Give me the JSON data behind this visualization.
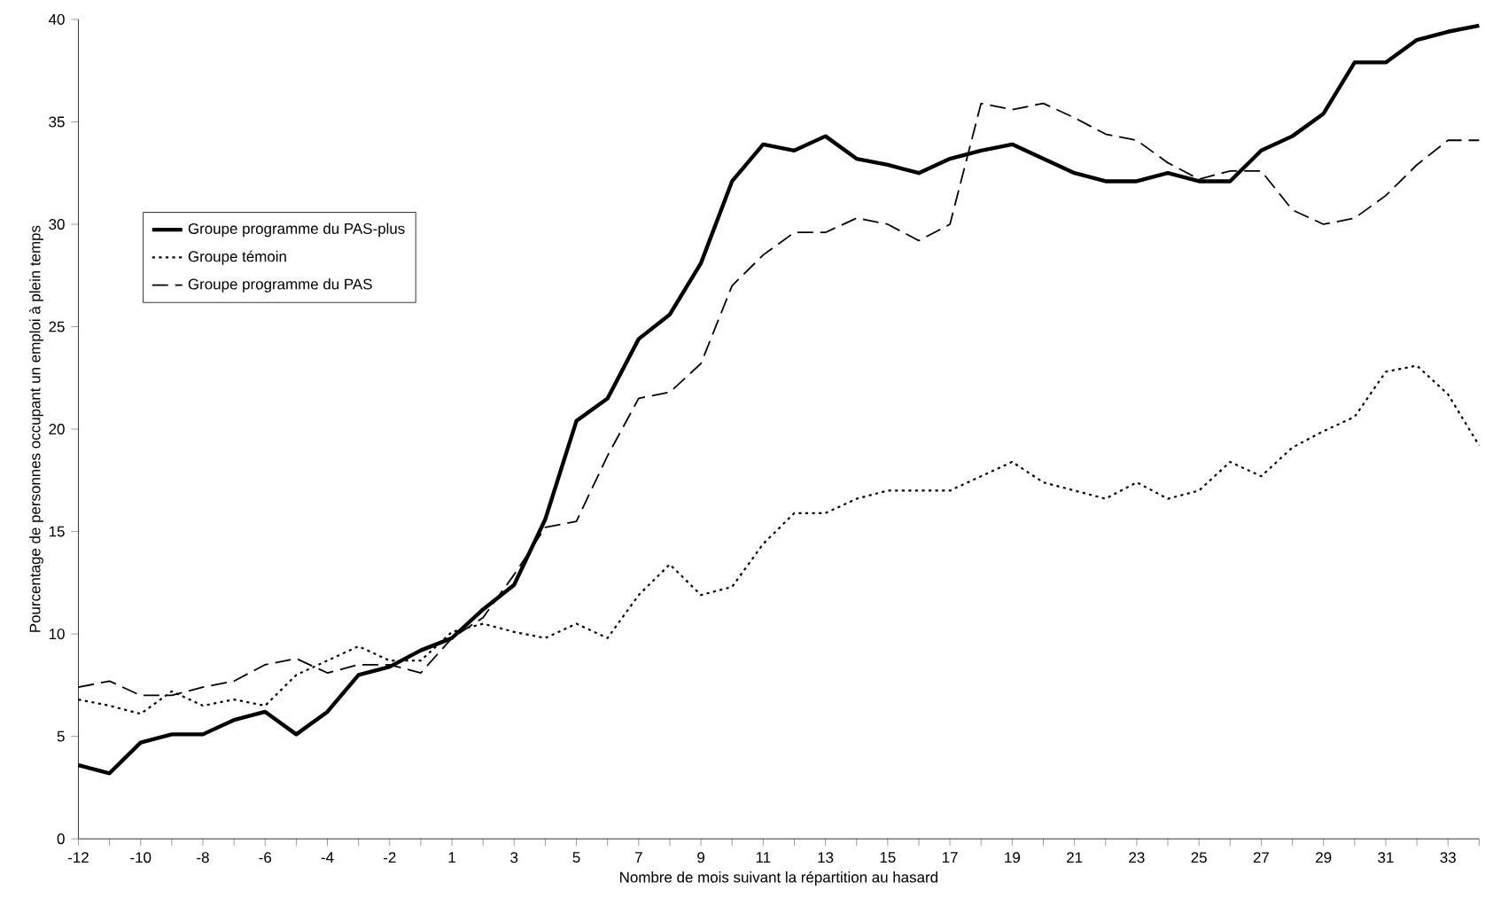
{
  "chart_data": {
    "type": "line",
    "xlabel": "Nombre de mois suivant la répartition au hasard",
    "ylabel": "Pourcentage de personnes occupant un emploi à plein temps",
    "categories": [
      "-12",
      null,
      "-10",
      null,
      "-8",
      null,
      "-6",
      null,
      "-4",
      null,
      "-2",
      null,
      "1",
      null,
      "3",
      null,
      "5",
      null,
      "7",
      null,
      "9",
      null,
      "11",
      null,
      "13",
      null,
      "15",
      null,
      "17",
      null,
      "19",
      null,
      "21",
      null,
      "23",
      null,
      "25",
      null,
      "27",
      null,
      "29",
      null,
      "31",
      null,
      "33",
      null
    ],
    "ylim": [
      0,
      40
    ],
    "yticks": [
      0,
      5,
      10,
      15,
      20,
      25,
      30,
      35,
      40
    ],
    "legend": "left",
    "series": [
      {
        "name": "Groupe programme du PAS-plus",
        "color": "#000000",
        "line_style": "solid",
        "values": [
          3.6,
          3.2,
          4.7,
          5.1,
          5.1,
          5.8,
          6.2,
          5.1,
          6.2,
          8.0,
          8.4,
          9.2,
          9.8,
          11.2,
          12.4,
          15.6,
          20.4,
          21.5,
          24.4,
          25.6,
          28.1,
          32.1,
          33.9,
          33.6,
          34.3,
          33.2,
          32.9,
          32.5,
          33.2,
          33.6,
          33.9,
          33.2,
          32.5,
          32.1,
          32.1,
          32.5,
          32.1,
          32.1,
          33.6,
          34.3,
          35.4,
          37.9,
          37.9,
          39.0,
          39.4,
          39.7
        ]
      },
      {
        "name": "Groupe témoin",
        "color": "#000000",
        "line_style": "dotted",
        "values": [
          6.8,
          6.5,
          6.1,
          7.2,
          6.5,
          6.8,
          6.5,
          8.0,
          8.7,
          9.4,
          8.7,
          8.7,
          10.1,
          10.5,
          10.1,
          9.8,
          10.5,
          9.8,
          11.9,
          13.4,
          11.9,
          12.3,
          14.4,
          15.9,
          15.9,
          16.6,
          17.0,
          17.0,
          17.0,
          17.7,
          18.4,
          17.4,
          17.0,
          16.6,
          17.4,
          16.6,
          17.0,
          18.4,
          17.7,
          19.1,
          19.9,
          20.6,
          22.8,
          23.1,
          21.7,
          19.2
        ]
      },
      {
        "name": "Groupe programme du PAS",
        "color": "#000000",
        "line_style": "dashed",
        "values": [
          7.4,
          7.7,
          7.0,
          7.0,
          7.4,
          7.7,
          8.5,
          8.8,
          8.1,
          8.5,
          8.5,
          8.1,
          9.8,
          10.8,
          12.9,
          15.2,
          15.5,
          18.7,
          21.5,
          21.8,
          23.2,
          27.0,
          28.5,
          29.6,
          29.6,
          30.3,
          30.0,
          29.2,
          30.0,
          35.9,
          35.6,
          35.9,
          35.2,
          34.4,
          34.1,
          33.0,
          32.2,
          32.6,
          32.6,
          30.7,
          30.0,
          30.3,
          31.4,
          32.9,
          34.1,
          34.1
        ]
      }
    ]
  }
}
